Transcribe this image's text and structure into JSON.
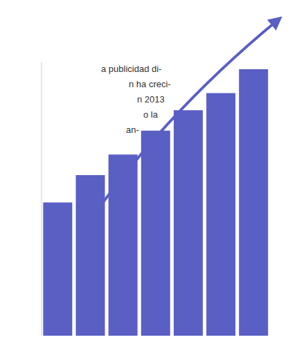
{
  "chart_data": {
    "type": "bar",
    "categories": [
      null,
      null,
      null,
      null,
      null,
      null,
      null
    ],
    "values": [
      195,
      235,
      265,
      300,
      330,
      355,
      390
    ],
    "color": "#5a5fc4",
    "ylim": [
      0,
      400
    ],
    "tick_labels": false,
    "grid": false,
    "annotations": [
      "a publicidad di-",
      "n ha creci-",
      "n 2013",
      "o la",
      "an-"
    ]
  }
}
